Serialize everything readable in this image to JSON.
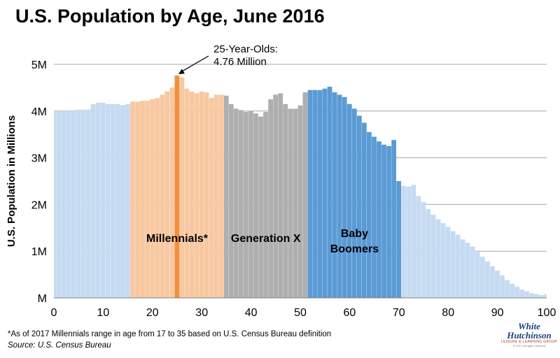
{
  "title": "U.S. Population by Age, June 2016",
  "footnote": "*As of 2017 Millennials range in age from 17 to 35 based on U.S. Census Bureau definition",
  "source": "Source: U.S. Census Bureau",
  "logo": {
    "line1": "White",
    "line2": "Hutchinson",
    "line3": "LEISURE & LEARNING GROUP",
    "line4": "© 2017 All rights reserved"
  },
  "chart_data": {
    "type": "bar",
    "title": "U.S. Population by Age, June 2016",
    "xlabel": "",
    "ylabel": "U.S. Population in Millions",
    "xlim": [
      0,
      100
    ],
    "ylim": [
      0,
      5
    ],
    "x_ticks": [
      0,
      10,
      20,
      30,
      40,
      50,
      60,
      70,
      80,
      90,
      100
    ],
    "y_ticks": [
      {
        "value": 0,
        "label": "M"
      },
      {
        "value": 1,
        "label": "1M"
      },
      {
        "value": 2,
        "label": "2M"
      },
      {
        "value": 3,
        "label": "3M"
      },
      {
        "value": 4,
        "label": "4M"
      },
      {
        "value": 5,
        "label": "5M"
      }
    ],
    "grid": "horizontal",
    "categories": [
      0,
      1,
      2,
      3,
      4,
      5,
      6,
      7,
      8,
      9,
      10,
      11,
      12,
      13,
      14,
      15,
      16,
      17,
      18,
      19,
      20,
      21,
      22,
      23,
      24,
      25,
      26,
      27,
      28,
      29,
      30,
      31,
      32,
      33,
      34,
      35,
      36,
      37,
      38,
      39,
      40,
      41,
      42,
      43,
      44,
      45,
      46,
      47,
      48,
      49,
      50,
      51,
      52,
      53,
      54,
      55,
      56,
      57,
      58,
      59,
      60,
      61,
      62,
      63,
      64,
      65,
      66,
      67,
      68,
      69,
      70,
      71,
      72,
      73,
      74,
      75,
      76,
      77,
      78,
      79,
      80,
      81,
      82,
      83,
      84,
      85,
      86,
      87,
      88,
      89,
      90,
      91,
      92,
      93,
      94,
      95,
      96,
      97,
      98,
      99,
      100
    ],
    "values": [
      4.0,
      4.0,
      4.0,
      4.0,
      4.02,
      4.03,
      4.03,
      4.03,
      4.15,
      4.18,
      4.18,
      4.15,
      4.15,
      4.15,
      4.13,
      4.15,
      4.2,
      4.2,
      4.22,
      4.22,
      4.25,
      4.28,
      4.35,
      4.42,
      4.5,
      4.76,
      4.72,
      4.48,
      4.42,
      4.38,
      4.42,
      4.4,
      4.28,
      4.35,
      4.35,
      4.33,
      4.15,
      4.05,
      4.02,
      3.98,
      4.0,
      3.95,
      3.88,
      3.98,
      4.25,
      4.35,
      4.38,
      4.15,
      4.05,
      4.05,
      4.12,
      4.4,
      4.45,
      4.45,
      4.45,
      4.48,
      4.52,
      4.4,
      4.35,
      4.3,
      4.15,
      4.05,
      3.9,
      3.75,
      3.55,
      3.45,
      3.35,
      3.28,
      3.25,
      3.38,
      2.5,
      2.4,
      2.38,
      2.42,
      2.18,
      2.05,
      1.9,
      1.78,
      1.68,
      1.6,
      1.52,
      1.43,
      1.35,
      1.25,
      1.18,
      1.1,
      0.98,
      0.88,
      0.78,
      0.68,
      0.58,
      0.48,
      0.38,
      0.3,
      0.24,
      0.18,
      0.14,
      0.1,
      0.08,
      0.06,
      0.08
    ],
    "groups": [
      {
        "label": "",
        "from": 0,
        "to": 15,
        "color": "#c6dbf1"
      },
      {
        "label": "Millennials*",
        "from": 16,
        "to": 34,
        "color": "#f8c8a1"
      },
      {
        "label": "Generation X",
        "from": 35,
        "to": 51,
        "color": "#afafaf"
      },
      {
        "label": "Baby\nBoomers",
        "from": 52,
        "to": 70,
        "color": "#5b9bd5"
      },
      {
        "label": "",
        "from": 71,
        "to": 100,
        "color": "#c6dbf1"
      }
    ],
    "highlight": {
      "age": 25,
      "color": "#f28f3c"
    },
    "annotation": {
      "line1": "25-Year-Olds:",
      "line2": "4.76 Million",
      "target_age": 25,
      "target_value": 4.76
    },
    "gridline_color": "#a6a6a6"
  }
}
